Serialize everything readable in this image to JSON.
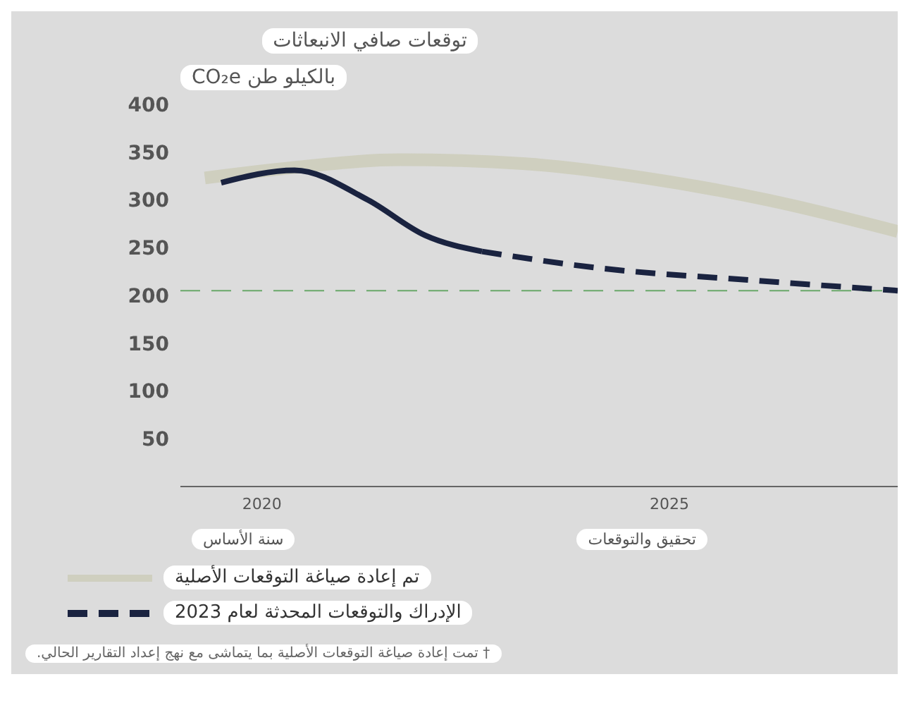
{
  "chart_data": {
    "type": "line",
    "title": "توقعات صافي الانبعاثات",
    "subtitle": "بالكيلو طن CO₂e",
    "xlim": [
      2019,
      2027.8
    ],
    "xticks": [
      2020,
      2025
    ],
    "ylim": [
      0,
      400
    ],
    "yticks": [
      {
        "value": 0,
        "label": null
      },
      50,
      100,
      150,
      200,
      250,
      300,
      350,
      400
    ],
    "series": [
      {
        "name": "تم إعادة صياغة التوقعات الأصلية",
        "color": "#cfcfbf",
        "line_style": "solid",
        "x": [
          2019.3,
          2020.4,
          2021.7,
          2023.2,
          2024.7,
          2026.2,
          2027.8
        ],
        "values": [
          323,
          334,
          342,
          338,
          323,
          300,
          267
        ]
      },
      {
        "color": "#1a2340",
        "line_style": "solid",
        "x": [
          2019.5,
          2020.4,
          2021.3,
          2022,
          2022.7
        ],
        "values": [
          318,
          331,
          300,
          263,
          246
        ]
      },
      {
        "name": "الإدراك والتوقعات المحدثة لعام 2023",
        "color": "#1a2340",
        "line_style": "dashed",
        "x": [
          2022.7,
          2024.1,
          2026,
          2027.8
        ],
        "values": [
          246,
          229,
          216,
          205
        ]
      }
    ],
    "ref_lines": [
      {
        "axis": "y",
        "value": 205,
        "color": "#6aa86a",
        "line_style": "dashed"
      }
    ],
    "grid": false,
    "legend": "bottom left",
    "marker": "none",
    "annotations": [
      "سنة الأساس",
      "تحقيق والتوقعات",
      "† تمت إعادة صياغة التوقعات الأصلية بما يتماشى مع نهج إعداد التقارير الحالي."
    ]
  }
}
